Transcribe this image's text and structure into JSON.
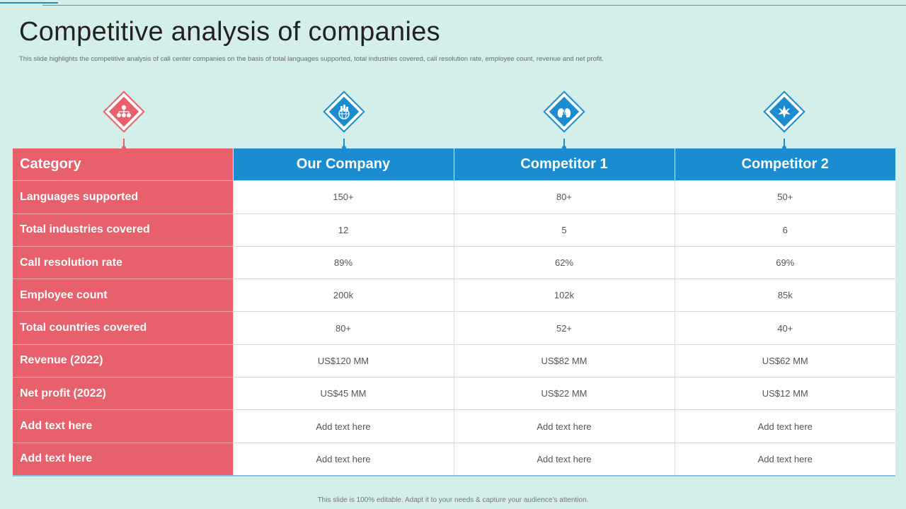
{
  "title": "Competitive analysis of companies",
  "subtitle": "This slide highlights the competitive analysis of call center companies on the basis of total languages supported, total industries covered, call resolution rate, employee count, revenue and net profit.",
  "colors": {
    "accent_red": "#e8606c",
    "accent_blue": "#1a8ccf",
    "background": "#d4eeea"
  },
  "icons": [
    "org-chart-icon",
    "global-building-icon",
    "people-talking-icon",
    "competition-clash-icon"
  ],
  "table": {
    "headers": [
      "Category",
      "Our Company",
      "Competitor 1",
      "Competitor 2"
    ],
    "rows": [
      {
        "category": "Languages supported",
        "values": [
          "150+",
          "80+",
          "50+"
        ]
      },
      {
        "category": "Total industries covered",
        "values": [
          "12",
          "5",
          "6"
        ]
      },
      {
        "category": "Call resolution rate",
        "values": [
          "89%",
          "62%",
          "69%"
        ]
      },
      {
        "category": "Employee count",
        "values": [
          "200k",
          "102k",
          "85k"
        ]
      },
      {
        "category": "Total countries covered",
        "values": [
          "80+",
          "52+",
          "40+"
        ]
      },
      {
        "category": "Revenue (2022)",
        "values": [
          "US$120 MM",
          "US$82 MM",
          "US$62 MM"
        ]
      },
      {
        "category": "Net profit (2022)",
        "values": [
          "US$45 MM",
          "US$22 MM",
          "US$12 MM"
        ]
      },
      {
        "category": "Add text here",
        "values": [
          "Add text here",
          "Add text here",
          "Add text here"
        ]
      },
      {
        "category": "Add text here",
        "values": [
          "Add text here",
          "Add text here",
          "Add text here"
        ]
      }
    ]
  },
  "footer": "This slide is 100% editable. Adapt it to your needs & capture your audience’s attention."
}
